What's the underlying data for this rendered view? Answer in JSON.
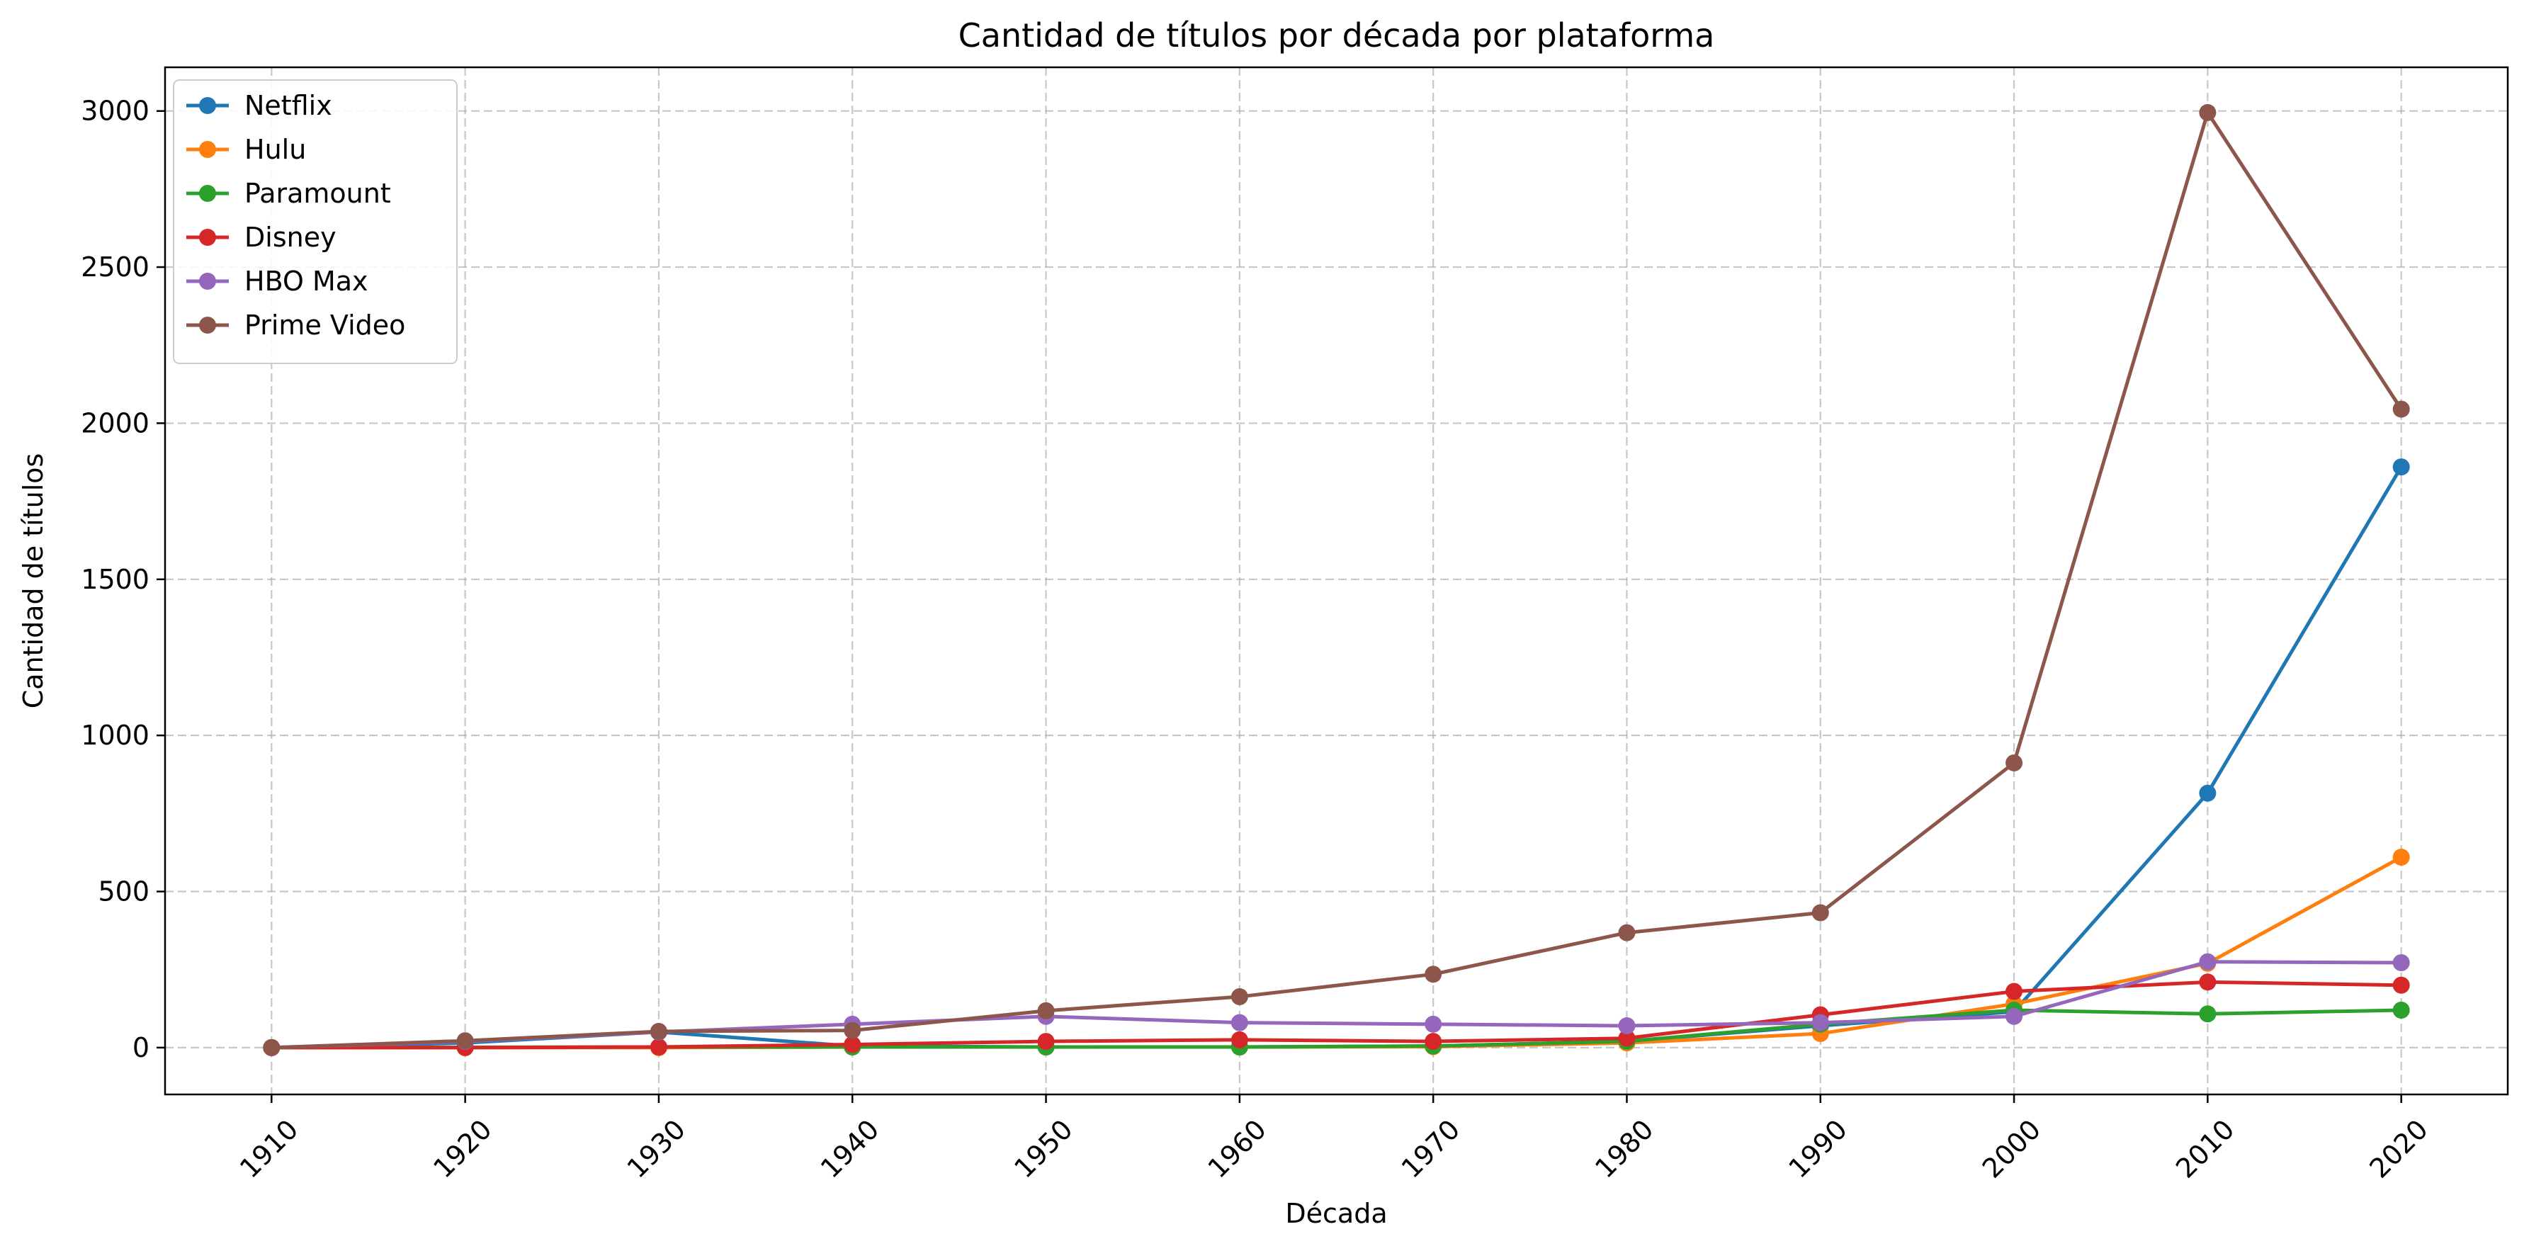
{
  "chart_data": {
    "type": "line",
    "title": "Cantidad de títulos por década por plataforma",
    "xlabel": "Década",
    "ylabel": "Cantidad de títulos",
    "x": [
      1910,
      1920,
      1930,
      1940,
      1950,
      1960,
      1970,
      1980,
      1990,
      2000,
      2010,
      2020
    ],
    "x_tick_labels": [
      "1910",
      "1920",
      "1930",
      "1940",
      "1950",
      "1960",
      "1970",
      "1980",
      "1990",
      "2000",
      "2010",
      "2020"
    ],
    "x_tick_rotation": 45,
    "ylim": [
      -150,
      3140
    ],
    "y_ticks": [
      0,
      500,
      1000,
      1500,
      2000,
      2500,
      3000
    ],
    "y_tick_labels": [
      "0",
      "500",
      "1000",
      "1500",
      "2000",
      "2500",
      "3000"
    ],
    "grid": true,
    "legend_position": "top-left",
    "marker": "circle",
    "series": [
      {
        "name": "Netflix",
        "color": "#1f77b4",
        "values": [
          0,
          15,
          50,
          5,
          2,
          2,
          5,
          20,
          70,
          115,
          815,
          1860
        ]
      },
      {
        "name": "Hulu",
        "color": "#ff7f0e",
        "values": [
          0,
          0,
          0,
          2,
          2,
          2,
          3,
          15,
          45,
          140,
          270,
          610
        ]
      },
      {
        "name": "Paramount",
        "color": "#2ca02c",
        "values": [
          0,
          1,
          2,
          2,
          2,
          2,
          5,
          20,
          75,
          120,
          108,
          120
        ]
      },
      {
        "name": "Disney",
        "color": "#d62728",
        "values": [
          0,
          0,
          2,
          10,
          20,
          25,
          20,
          30,
          105,
          180,
          210,
          200
        ]
      },
      {
        "name": "HBO Max",
        "color": "#9467bd",
        "values": [
          0,
          20,
          50,
          75,
          100,
          80,
          75,
          70,
          80,
          100,
          275,
          272
        ]
      },
      {
        "name": "Prime Video",
        "color": "#8c564b",
        "values": [
          0,
          22,
          52,
          55,
          118,
          163,
          235,
          368,
          432,
          912,
          2995,
          2045
        ]
      }
    ]
  }
}
